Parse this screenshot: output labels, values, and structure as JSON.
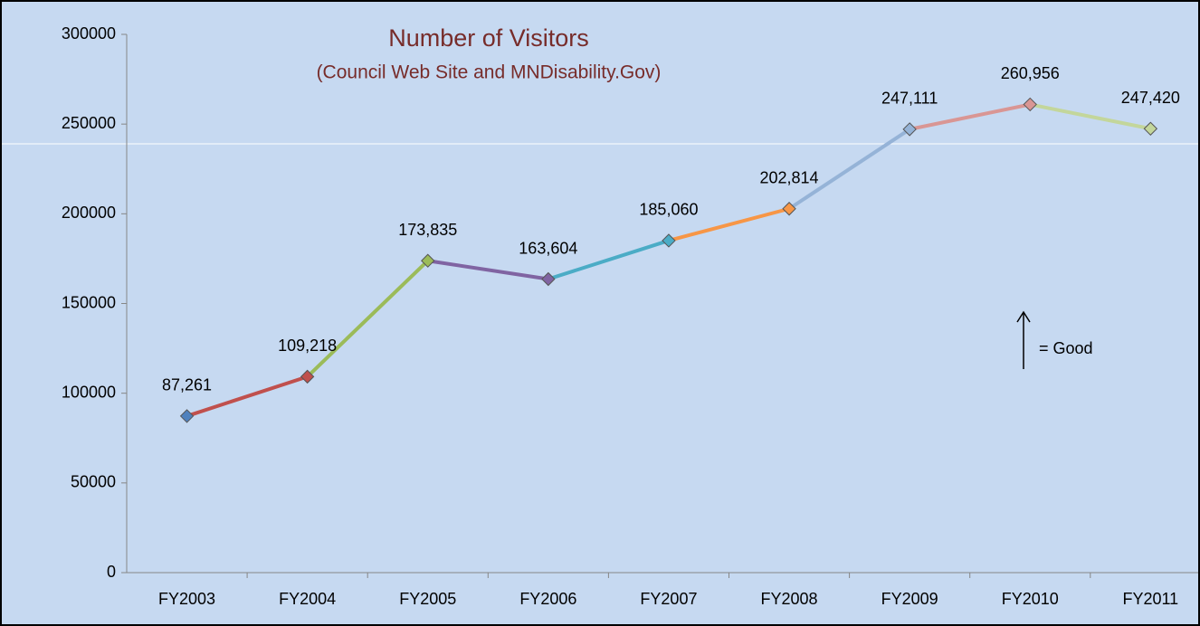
{
  "chart_data": {
    "type": "line",
    "title": "Number of Visitors",
    "subtitle": "(Council Web Site and MNDisability.Gov)",
    "annotation": "= Good",
    "categories": [
      "FY2003",
      "FY2004",
      "FY2005",
      "FY2006",
      "FY2007",
      "FY2008",
      "FY2009",
      "FY2010",
      "FY2011"
    ],
    "values": [
      87261,
      109218,
      173835,
      163604,
      185060,
      202814,
      247111,
      260956,
      247420
    ],
    "value_labels": [
      "87,261",
      "109,218",
      "173,835",
      "163,604",
      "185,060",
      "202,814",
      "247,111",
      "260,956",
      "247,420"
    ],
    "colors": [
      "#4f81bd",
      "#c0504d",
      "#9bbb59",
      "#8064a2",
      "#4bacc6",
      "#f79646",
      "#95b3d7",
      "#d99694",
      "#c3d69b"
    ],
    "ylim": [
      0,
      300000
    ],
    "yticks": [
      0,
      50000,
      100000,
      150000,
      200000,
      250000,
      300000
    ],
    "grid": false
  }
}
